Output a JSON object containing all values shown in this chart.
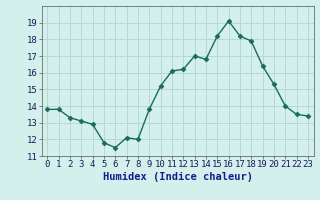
{
  "x": [
    0,
    1,
    2,
    3,
    4,
    5,
    6,
    7,
    8,
    9,
    10,
    11,
    12,
    13,
    14,
    15,
    16,
    17,
    18,
    19,
    20,
    21,
    22,
    23
  ],
  "y": [
    13.8,
    13.8,
    13.3,
    13.1,
    12.9,
    11.8,
    11.5,
    12.1,
    12.0,
    13.8,
    15.2,
    16.1,
    16.2,
    17.0,
    16.8,
    18.2,
    19.1,
    18.2,
    17.9,
    16.4,
    15.3,
    14.0,
    13.5,
    13.4
  ],
  "line_color": "#1a6b5a",
  "marker": "D",
  "markersize": 2.5,
  "linewidth": 1.0,
  "bg_color": "#d4f0ec",
  "grid_color": "#b8d8d4",
  "xlabel": "Humidex (Indice chaleur)",
  "xlabel_color": "#1a1a8c",
  "ylim": [
    11,
    20
  ],
  "xlim": [
    -0.5,
    23.5
  ],
  "yticks": [
    11,
    12,
    13,
    14,
    15,
    16,
    17,
    18,
    19
  ],
  "xticks": [
    0,
    1,
    2,
    3,
    4,
    5,
    6,
    7,
    8,
    9,
    10,
    11,
    12,
    13,
    14,
    15,
    16,
    17,
    18,
    19,
    20,
    21,
    22,
    23
  ],
  "tick_label_fontsize": 6.5,
  "xlabel_fontsize": 7.5
}
